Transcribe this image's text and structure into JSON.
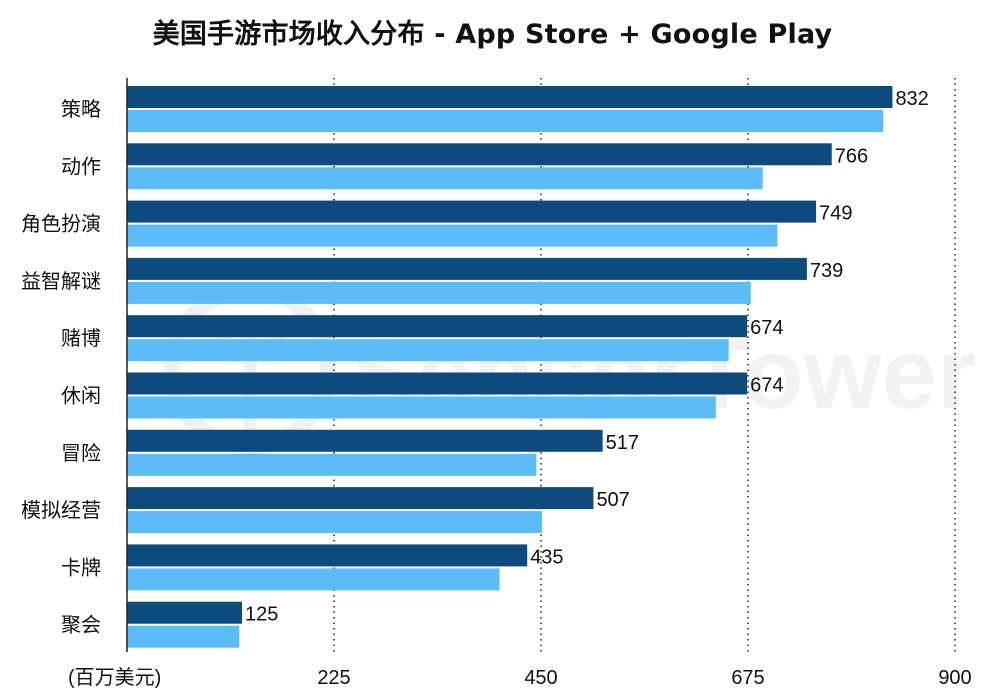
{
  "chart_data": {
    "type": "bar",
    "title": "美国手游市场收入分布 - App Store + Google Play",
    "xlabel": "(百万美元)",
    "ylabel": "",
    "xlim": [
      0,
      900
    ],
    "xticks": [
      225,
      450,
      675,
      900
    ],
    "grid": "vertical-dotted",
    "orientation": "horizontal",
    "categories": [
      "策略",
      "动作",
      "角色扮演",
      "益智解谜",
      "赌博",
      "休闲",
      "冒险",
      "模拟经营",
      "卡牌",
      "聚会"
    ],
    "series": [
      {
        "values": [
          832,
          766,
          749,
          739,
          674,
          674,
          517,
          507,
          435,
          125
        ],
        "color": "#0d4a7e",
        "labeled": true
      },
      {
        "values": [
          822,
          691,
          707,
          678,
          654,
          640,
          445,
          451,
          405,
          122
        ],
        "color": "#5bbcf7",
        "labeled": false
      }
    ]
  },
  "watermark": {
    "text": "SensorTower"
  }
}
